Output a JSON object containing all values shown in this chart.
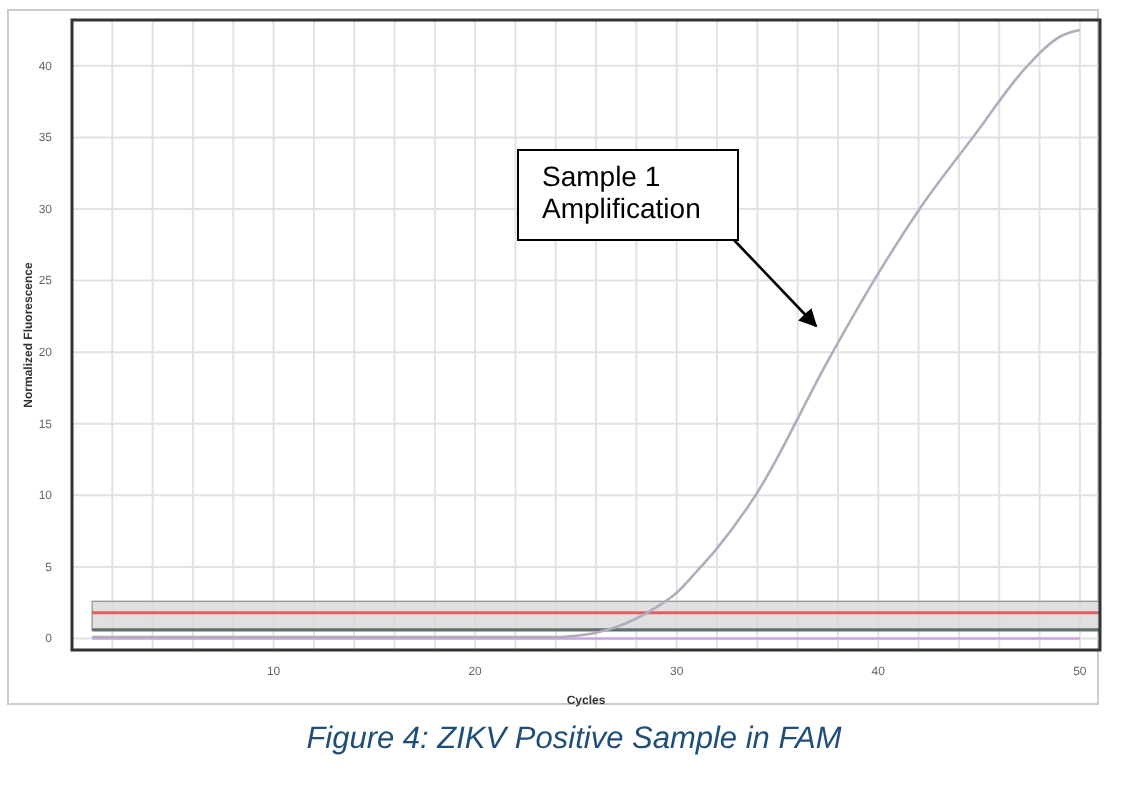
{
  "chart_data": {
    "type": "line",
    "title": "Figure 4: ZIKV Positive Sample in FAM",
    "xlabel": "Cycles",
    "ylabel": "Normalized Fluorescence",
    "xlim": [
      0,
      51
    ],
    "ylim": [
      -0.8,
      43.2
    ],
    "xticks": [
      {
        "value": 2,
        "label": null
      },
      {
        "value": 4,
        "label": null
      },
      {
        "value": 6,
        "label": null
      },
      {
        "value": 8,
        "label": null
      },
      10,
      {
        "value": 12,
        "label": null
      },
      {
        "value": 14,
        "label": null
      },
      {
        "value": 16,
        "label": null
      },
      {
        "value": 18,
        "label": null
      },
      20,
      {
        "value": 22,
        "label": null
      },
      {
        "value": 24,
        "label": null
      },
      {
        "value": 26,
        "label": null
      },
      {
        "value": 28,
        "label": null
      },
      30,
      {
        "value": 32,
        "label": null
      },
      {
        "value": 34,
        "label": null
      },
      {
        "value": 36,
        "label": null
      },
      {
        "value": 38,
        "label": null
      },
      40,
      {
        "value": 42,
        "label": null
      },
      {
        "value": 44,
        "label": null
      },
      {
        "value": 46,
        "label": null
      },
      {
        "value": 48,
        "label": null
      },
      50
    ],
    "yticks": [
      0,
      5,
      10,
      15,
      20,
      25,
      30,
      35,
      40
    ],
    "grid": true,
    "marker": "none",
    "line_style": "solid",
    "series": [
      {
        "color": "#c8a8e0",
        "x": [
          1,
          10,
          20,
          25,
          30,
          40,
          50
        ],
        "values": [
          0,
          0,
          0,
          0,
          0,
          0,
          0
        ]
      },
      {
        "color": "#b4acbc",
        "x": [
          1,
          10,
          20,
          24,
          25,
          26,
          27,
          28,
          29,
          30,
          31,
          32,
          34,
          37.5,
          40,
          42,
          44.8,
          47.4,
          49.1,
          50
        ],
        "values": [
          0.1,
          0.1,
          0.1,
          0.1,
          0.2,
          0.4,
          0.8,
          1.4,
          2.2,
          3.2,
          4.7,
          6.3,
          10.2,
          19.4,
          25.5,
          29.9,
          35.2,
          40,
          42.1,
          42.5
        ]
      }
    ],
    "bands": [
      {
        "axis": "y",
        "from": 0.6,
        "to": 2.6,
        "color": "#d8d8d8"
      }
    ],
    "ref_lines": [
      {
        "axis": "y",
        "value": 1.8,
        "color": "#e06060",
        "line_style": "solid"
      },
      {
        "axis": "y",
        "value": 0.6,
        "color": "#607070",
        "line_style": "solid"
      }
    ],
    "annotations": [
      "Sample 1\nAmplification"
    ]
  }
}
